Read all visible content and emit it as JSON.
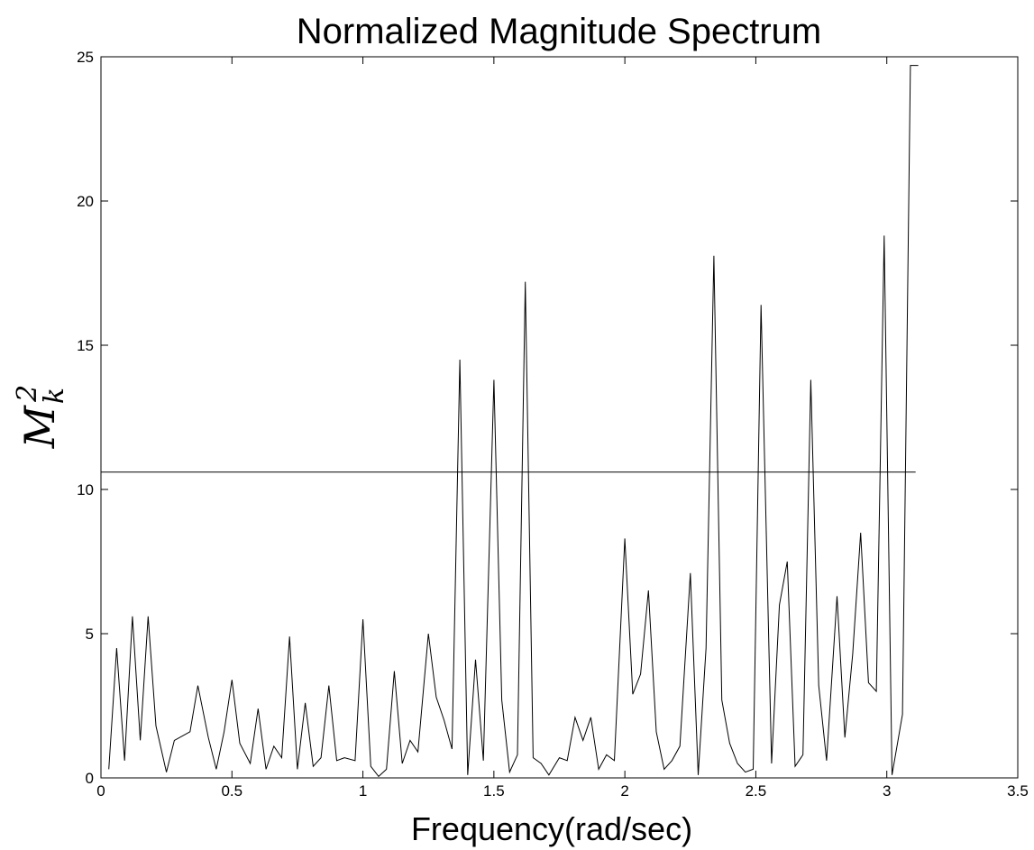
{
  "chart_data": {
    "type": "line",
    "title": "Normalized Magnitude Spectrum",
    "xlabel": "Frequency(rad/sec)",
    "ylabel": {
      "base": "M",
      "sub": "k",
      "sup": "2"
    },
    "xlim": [
      0,
      3.5
    ],
    "ylim": [
      0,
      25
    ],
    "xticks": [
      0,
      0.5,
      1,
      1.5,
      2,
      2.5,
      3,
      3.5
    ],
    "xtick_labels": [
      "0",
      "0.5",
      "1",
      "1.5",
      "2",
      "2.5",
      "3",
      "3.5"
    ],
    "yticks": [
      0,
      5,
      10,
      15,
      20,
      25
    ],
    "ytick_labels": [
      "0",
      "5",
      "10",
      "15",
      "20",
      "25"
    ],
    "grid": false,
    "threshold": {
      "y": 10.6,
      "x": [
        0,
        3.11
      ]
    },
    "series": [
      {
        "x": [
          0.03,
          0.06,
          0.09,
          0.12,
          0.15,
          0.18,
          0.21,
          0.25,
          0.28,
          0.34,
          0.37,
          0.41,
          0.44,
          0.47,
          0.5,
          0.53,
          0.57,
          0.6,
          0.63,
          0.66,
          0.69,
          0.72,
          0.75,
          0.78,
          0.81,
          0.84,
          0.87,
          0.9,
          0.93,
          0.97,
          1.0,
          1.03,
          1.06,
          1.09,
          1.12,
          1.15,
          1.18,
          1.21,
          1.25,
          1.28,
          1.31,
          1.34,
          1.37,
          1.4,
          1.43,
          1.46,
          1.5,
          1.53,
          1.56,
          1.59,
          1.62,
          1.65,
          1.68,
          1.71,
          1.75,
          1.78,
          1.81,
          1.84,
          1.87,
          1.9,
          1.93,
          1.96,
          2.0,
          2.03,
          2.06,
          2.09,
          2.12,
          2.15,
          2.18,
          2.21,
          2.25,
          2.28,
          2.31,
          2.34,
          2.37,
          2.4,
          2.43,
          2.46,
          2.49,
          2.52,
          2.56,
          2.59,
          2.62,
          2.65,
          2.68,
          2.71,
          2.74,
          2.77,
          2.81,
          2.84,
          2.87,
          2.9,
          2.93,
          2.96,
          2.99,
          3.02,
          3.06,
          3.09,
          3.12
        ],
        "y": [
          0.3,
          4.5,
          0.6,
          5.6,
          1.3,
          5.6,
          1.8,
          0.2,
          1.3,
          1.6,
          3.2,
          1.4,
          0.3,
          1.6,
          3.4,
          1.2,
          0.5,
          2.4,
          0.3,
          1.1,
          0.7,
          4.9,
          0.3,
          2.6,
          0.4,
          0.7,
          3.2,
          0.6,
          0.7,
          0.6,
          5.5,
          0.4,
          0.05,
          0.3,
          3.7,
          0.5,
          1.3,
          0.9,
          5.0,
          2.8,
          2.0,
          1.0,
          14.5,
          0.1,
          4.1,
          0.6,
          13.8,
          2.7,
          0.2,
          0.8,
          17.2,
          0.7,
          0.5,
          0.1,
          0.7,
          0.6,
          2.1,
          1.3,
          2.1,
          0.3,
          0.8,
          0.6,
          8.3,
          2.9,
          3.6,
          6.5,
          1.6,
          0.3,
          0.6,
          1.1,
          7.1,
          0.1,
          4.5,
          18.1,
          2.7,
          1.2,
          0.5,
          0.2,
          0.3,
          16.4,
          0.5,
          6.0,
          7.5,
          0.4,
          0.8,
          13.8,
          3.2,
          0.6,
          6.3,
          1.4,
          4.3,
          8.5,
          3.3,
          3.0,
          18.8,
          0.1,
          2.2,
          24.7,
          24.7
        ]
      }
    ]
  }
}
